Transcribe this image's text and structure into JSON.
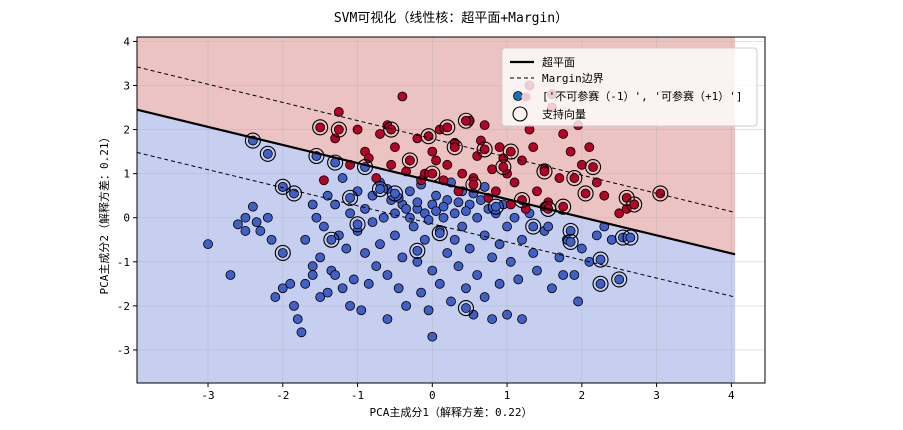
{
  "chart_data": {
    "type": "scatter",
    "title": "SVM可视化（线性核：超平面+Margin）",
    "xlabel": "PCA主成分1（解释方差：0.22）",
    "ylabel": "PCA主成分2（解释方差：0.21）",
    "xlim": [
      -3.95,
      4.45
    ],
    "ylim": [
      -3.75,
      4.1
    ],
    "xticks": [
      -3,
      -2,
      -1,
      0,
      1,
      2,
      3,
      4
    ],
    "yticks": [
      -3,
      -2,
      -1,
      0,
      1,
      2,
      3,
      4
    ],
    "grid": true,
    "legend": {
      "position": "top-right",
      "entries": [
        "超平面",
        "Margin边界",
        "['不可参赛（-1）', '可参赛（+1）']",
        "支持向量"
      ]
    },
    "region_colors": {
      "positive": "#ecc3c3",
      "negative": "#c6cff0"
    },
    "class_colors": {
      "-1": "#4060c8",
      "+1": "#b40426"
    },
    "hyperplane": {
      "x": [
        -3.95,
        4.05
      ],
      "y": [
        2.45,
        -0.83
      ]
    },
    "margin_upper": {
      "x": [
        -3.95,
        4.05
      ],
      "y": [
        3.42,
        0.12
      ]
    },
    "margin_lower": {
      "x": [
        -3.95,
        4.05
      ],
      "y": [
        1.48,
        -1.8
      ]
    },
    "series": [
      {
        "name": "不可参赛（-1）",
        "points": [
          [
            -3.0,
            -0.6
          ],
          [
            -2.7,
            -1.3
          ],
          [
            -2.6,
            -0.15
          ],
          [
            -2.5,
            0.0
          ],
          [
            -2.4,
            0.25
          ],
          [
            -2.35,
            -0.1
          ],
          [
            -2.3,
            -0.3
          ],
          [
            -2.2,
            0.0
          ],
          [
            -2.15,
            -0.5
          ],
          [
            -2.0,
            -1.6
          ],
          [
            -1.9,
            -1.5
          ],
          [
            -1.85,
            -2.0
          ],
          [
            -1.8,
            -2.3
          ],
          [
            -1.75,
            -2.6
          ],
          [
            -1.7,
            -1.5
          ],
          [
            -1.7,
            -0.5
          ],
          [
            -1.6,
            -1.1
          ],
          [
            -1.6,
            0.3
          ],
          [
            -1.55,
            0.0
          ],
          [
            -1.5,
            -0.9
          ],
          [
            -1.5,
            -1.8
          ],
          [
            -1.45,
            -0.2
          ],
          [
            -1.4,
            0.5
          ],
          [
            -1.35,
            -1.2
          ],
          [
            -1.3,
            -1.3
          ],
          [
            -1.3,
            0.3
          ],
          [
            -1.25,
            -0.4
          ],
          [
            -1.2,
            -1.6
          ],
          [
            -1.2,
            0.9
          ],
          [
            -1.15,
            -0.7
          ],
          [
            -1.1,
            -2.0
          ],
          [
            -1.1,
            0.1
          ],
          [
            -1.05,
            -1.4
          ],
          [
            -1.0,
            0.6
          ],
          [
            -1.0,
            -0.3
          ],
          [
            -0.95,
            -2.1
          ],
          [
            -0.9,
            -0.8
          ],
          [
            -0.9,
            0.2
          ],
          [
            -0.85,
            -1.5
          ],
          [
            -0.8,
            0.5
          ],
          [
            -0.8,
            -0.1
          ],
          [
            -0.75,
            -1.1
          ],
          [
            -0.7,
            0.8
          ],
          [
            -0.7,
            -0.6
          ],
          [
            -0.65,
            0.0
          ],
          [
            -0.6,
            -1.3
          ],
          [
            -0.6,
            -2.3
          ],
          [
            -0.55,
            0.4
          ],
          [
            -0.5,
            -0.4
          ],
          [
            -0.5,
            0.1
          ],
          [
            -0.45,
            -1.6
          ],
          [
            -0.4,
            0.3
          ],
          [
            -0.4,
            -0.9
          ],
          [
            -0.35,
            -2.0
          ],
          [
            -0.3,
            0.0
          ],
          [
            -0.3,
            0.6
          ],
          [
            -0.25,
            -0.2
          ],
          [
            -0.2,
            -1.0
          ],
          [
            -0.2,
            0.2
          ],
          [
            -0.15,
            -1.7
          ],
          [
            -0.1,
            0.1
          ],
          [
            -0.1,
            -0.5
          ],
          [
            -0.05,
            -2.1
          ],
          [
            0.0,
            0.3
          ],
          [
            0.0,
            -1.2
          ],
          [
            0.0,
            -2.7
          ],
          [
            0.05,
            0.5
          ],
          [
            0.1,
            -0.3
          ],
          [
            0.1,
            -1.5
          ],
          [
            0.15,
            0.0
          ],
          [
            0.2,
            -0.8
          ],
          [
            0.2,
            0.4
          ],
          [
            0.25,
            -1.9
          ],
          [
            0.3,
            0.1
          ],
          [
            0.3,
            -0.5
          ],
          [
            0.35,
            -1.1
          ],
          [
            0.4,
            0.6
          ],
          [
            0.4,
            -0.2
          ],
          [
            0.45,
            -1.6
          ],
          [
            0.5,
            0.3
          ],
          [
            0.5,
            -0.7
          ],
          [
            0.55,
            -2.2
          ],
          [
            0.6,
            0.0
          ],
          [
            0.6,
            -1.3
          ],
          [
            0.65,
            0.4
          ],
          [
            0.7,
            -0.4
          ],
          [
            0.7,
            -1.8
          ],
          [
            0.75,
            0.2
          ],
          [
            0.8,
            -0.9
          ],
          [
            0.8,
            -2.3
          ],
          [
            0.85,
            0.1
          ],
          [
            0.9,
            -0.6
          ],
          [
            0.9,
            -1.5
          ],
          [
            0.95,
            0.3
          ],
          [
            1.0,
            -0.2
          ],
          [
            1.0,
            -2.2
          ],
          [
            1.05,
            -1.0
          ],
          [
            1.1,
            0.0
          ],
          [
            1.15,
            -1.4
          ],
          [
            1.2,
            -0.5
          ],
          [
            1.2,
            -2.3
          ],
          [
            1.3,
            0.1
          ],
          [
            1.35,
            -0.8
          ],
          [
            1.4,
            -1.2
          ],
          [
            1.5,
            -0.3
          ],
          [
            1.6,
            -1.6
          ],
          [
            1.7,
            -0.9
          ],
          [
            1.8,
            -0.5
          ],
          [
            1.9,
            -1.3
          ],
          [
            2.0,
            -0.7
          ],
          [
            2.1,
            -1.0
          ],
          [
            2.2,
            -0.4
          ],
          [
            2.3,
            -0.2
          ],
          [
            2.4,
            -0.5
          ],
          [
            1.55,
            -0.2
          ],
          [
            1.75,
            -1.3
          ],
          [
            1.95,
            -1.9
          ],
          [
            -0.15,
            0.75
          ],
          [
            0.25,
            0.8
          ],
          [
            0.7,
            0.7
          ],
          [
            -0.35,
            0.2
          ],
          [
            0.05,
            0.15
          ],
          [
            0.45,
            0.15
          ],
          [
            -0.6,
            0.65
          ],
          [
            -0.05,
            -0.05
          ],
          [
            0.35,
            0.35
          ],
          [
            -0.45,
            0.45
          ],
          [
            0.55,
            0.55
          ],
          [
            -0.2,
            0.35
          ],
          [
            0.15,
            0.25
          ],
          [
            -1.6,
            -1.3
          ],
          [
            -2.1,
            -1.8
          ],
          [
            -1.4,
            -1.7
          ],
          [
            -2.5,
            -0.3
          ]
        ]
      },
      {
        "name": "可参赛（+1）",
        "points": [
          [
            -1.25,
            2.4
          ],
          [
            -1.3,
            1.8
          ],
          [
            -1.0,
            2.0
          ],
          [
            -0.9,
            1.5
          ],
          [
            -0.7,
            1.9
          ],
          [
            -0.6,
            2.1
          ],
          [
            -0.5,
            1.6
          ],
          [
            -0.4,
            2.75
          ],
          [
            -0.3,
            1.3
          ],
          [
            -0.2,
            1.8
          ],
          [
            -0.1,
            1.0
          ],
          [
            0.0,
            1.5
          ],
          [
            0.1,
            2.0
          ],
          [
            0.2,
            1.2
          ],
          [
            0.3,
            1.7
          ],
          [
            0.4,
            1.0
          ],
          [
            0.5,
            2.2
          ],
          [
            0.55,
            0.9
          ],
          [
            0.6,
            1.4
          ],
          [
            0.7,
            2.1
          ],
          [
            0.8,
            1.1
          ],
          [
            0.9,
            1.6
          ],
          [
            1.0,
            1.0
          ],
          [
            1.1,
            0.8
          ],
          [
            1.2,
            1.3
          ],
          [
            1.3,
            2.0
          ],
          [
            1.4,
            0.6
          ],
          [
            1.5,
            1.1
          ],
          [
            1.6,
            2.5
          ],
          [
            1.7,
            0.9
          ],
          [
            1.75,
            1.9
          ],
          [
            1.85,
            1.5
          ],
          [
            2.0,
            1.2
          ],
          [
            2.1,
            1.6
          ],
          [
            2.2,
            0.8
          ],
          [
            2.3,
            0.5
          ],
          [
            2.5,
            0.1
          ],
          [
            2.6,
            0.2
          ],
          [
            2.7,
            0.3
          ],
          [
            1.3,
            3.0
          ],
          [
            1.6,
            2.8
          ],
          [
            1.95,
            2.1
          ],
          [
            1.05,
            0.3
          ],
          [
            0.85,
            0.6
          ],
          [
            0.35,
            0.6
          ],
          [
            -0.15,
            0.85
          ],
          [
            -0.75,
            0.9
          ],
          [
            -1.1,
            1.2
          ],
          [
            -1.45,
            0.85
          ],
          [
            -0.55,
            1.2
          ],
          [
            0.15,
            0.85
          ],
          [
            0.75,
            0.45
          ],
          [
            1.25,
            0.2
          ],
          [
            1.55,
            0.35
          ],
          [
            -2.0,
            0.7
          ],
          [
            1.5,
            0.25
          ],
          [
            0.95,
            1.35
          ],
          [
            0.05,
            1.3
          ],
          [
            -0.35,
            1.05
          ],
          [
            0.65,
            1.75
          ],
          [
            1.35,
            1.6
          ],
          [
            -0.85,
            1.35
          ]
        ]
      }
    ],
    "support_vectors": [
      [
        -2.4,
        1.75
      ],
      [
        -2.2,
        1.45
      ],
      [
        -2.0,
        0.7
      ],
      [
        -2.0,
        -0.8
      ],
      [
        -1.85,
        0.55
      ],
      [
        -1.55,
        1.4
      ],
      [
        -1.5,
        2.05
      ],
      [
        -1.3,
        1.25
      ],
      [
        -1.35,
        -0.5
      ],
      [
        -1.1,
        0.45
      ],
      [
        -1.0,
        -0.15
      ],
      [
        -0.9,
        1.15
      ],
      [
        -0.7,
        0.65
      ],
      [
        -0.5,
        0.55
      ],
      [
        -0.3,
        1.3
      ],
      [
        -0.2,
        -0.75
      ],
      [
        0.0,
        1.0
      ],
      [
        0.1,
        -0.35
      ],
      [
        0.3,
        1.6
      ],
      [
        0.45,
        2.2
      ],
      [
        0.45,
        -2.05
      ],
      [
        0.55,
        0.75
      ],
      [
        0.7,
        1.55
      ],
      [
        0.85,
        0.25
      ],
      [
        0.95,
        1.15
      ],
      [
        1.05,
        1.5
      ],
      [
        1.2,
        0.4
      ],
      [
        1.35,
        -0.2
      ],
      [
        1.5,
        1.05
      ],
      [
        1.55,
        0.2
      ],
      [
        1.75,
        0.25
      ],
      [
        1.85,
        -0.3
      ],
      [
        1.85,
        -0.55
      ],
      [
        1.9,
        0.9
      ],
      [
        2.05,
        0.55
      ],
      [
        2.15,
        1.15
      ],
      [
        2.25,
        -0.95
      ],
      [
        2.25,
        -1.5
      ],
      [
        2.55,
        -0.45
      ],
      [
        2.6,
        0.45
      ],
      [
        2.65,
        -0.45
      ],
      [
        2.7,
        0.3
      ],
      [
        2.5,
        -1.4
      ],
      [
        3.05,
        0.55
      ],
      [
        -0.55,
        2.0
      ],
      [
        0.2,
        2.05
      ],
      [
        -1.25,
        2.0
      ],
      [
        -0.05,
        1.85
      ]
    ]
  }
}
